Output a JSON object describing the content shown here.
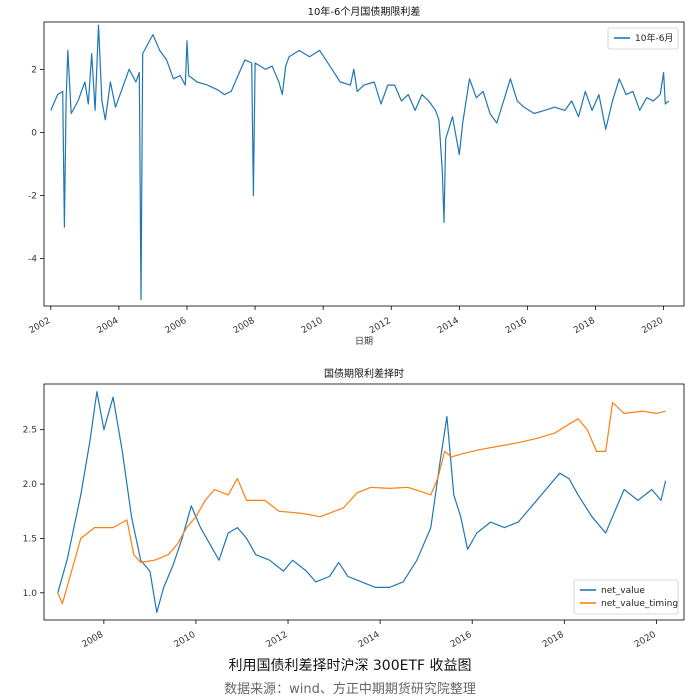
{
  "chart_data": [
    {
      "type": "line",
      "title": "10年-6个月国债期限利差",
      "xlabel": "日期",
      "ylabel": "",
      "xlim": [
        2001.8,
        2020.6
      ],
      "ylim": [
        -5.5,
        3.5
      ],
      "x_ticks": [
        2002,
        2004,
        2006,
        2008,
        2010,
        2012,
        2014,
        2016,
        2018,
        2020
      ],
      "x_tick_labels": [
        "2002",
        "2004",
        "2006",
        "2008",
        "2010",
        "2012",
        "2014",
        "2016",
        "2018",
        "2020"
      ],
      "y_ticks": [
        2,
        0,
        -2,
        -4
      ],
      "y_tick_labels": [
        "2",
        "0",
        "-2",
        "-4"
      ],
      "grid": false,
      "legend": "top-right",
      "series": [
        {
          "name": "10年-6月",
          "color": "#1f77b4",
          "points": [
            [
              2002.0,
              0.7
            ],
            [
              2002.2,
              1.2
            ],
            [
              2002.35,
              1.3
            ],
            [
              2002.4,
              -3.0
            ],
            [
              2002.45,
              1.0
            ],
            [
              2002.5,
              2.6
            ],
            [
              2002.6,
              0.6
            ],
            [
              2002.8,
              1.0
            ],
            [
              2003.0,
              1.6
            ],
            [
              2003.1,
              0.9
            ],
            [
              2003.2,
              2.5
            ],
            [
              2003.3,
              0.7
            ],
            [
              2003.4,
              3.4
            ],
            [
              2003.5,
              1.0
            ],
            [
              2003.6,
              0.4
            ],
            [
              2003.75,
              1.6
            ],
            [
              2003.9,
              0.8
            ],
            [
              2004.1,
              1.4
            ],
            [
              2004.3,
              2.0
            ],
            [
              2004.5,
              1.6
            ],
            [
              2004.6,
              1.9
            ],
            [
              2004.65,
              -5.3
            ],
            [
              2004.7,
              2.5
            ],
            [
              2004.9,
              2.9
            ],
            [
              2005.0,
              3.1
            ],
            [
              2005.2,
              2.6
            ],
            [
              2005.4,
              2.3
            ],
            [
              2005.6,
              1.7
            ],
            [
              2005.8,
              1.8
            ],
            [
              2005.95,
              1.5
            ],
            [
              2006.0,
              2.9
            ],
            [
              2006.05,
              1.8
            ],
            [
              2006.3,
              1.6
            ],
            [
              2006.6,
              1.5
            ],
            [
              2006.9,
              1.35
            ],
            [
              2007.1,
              1.2
            ],
            [
              2007.3,
              1.3
            ],
            [
              2007.5,
              1.8
            ],
            [
              2007.7,
              2.3
            ],
            [
              2007.9,
              2.2
            ],
            [
              2007.95,
              -2.0
            ],
            [
              2008.0,
              2.2
            ],
            [
              2008.3,
              2.0
            ],
            [
              2008.5,
              2.1
            ],
            [
              2008.7,
              1.6
            ],
            [
              2008.8,
              1.2
            ],
            [
              2008.9,
              2.1
            ],
            [
              2009.0,
              2.4
            ],
            [
              2009.3,
              2.6
            ],
            [
              2009.6,
              2.4
            ],
            [
              2009.9,
              2.6
            ],
            [
              2010.2,
              2.1
            ],
            [
              2010.5,
              1.6
            ],
            [
              2010.8,
              1.5
            ],
            [
              2010.9,
              2.0
            ],
            [
              2011.0,
              1.3
            ],
            [
              2011.2,
              1.5
            ],
            [
              2011.5,
              1.6
            ],
            [
              2011.7,
              0.9
            ],
            [
              2011.9,
              1.5
            ],
            [
              2012.1,
              1.5
            ],
            [
              2012.3,
              1.0
            ],
            [
              2012.5,
              1.2
            ],
            [
              2012.7,
              0.7
            ],
            [
              2012.9,
              1.2
            ],
            [
              2013.1,
              1.0
            ],
            [
              2013.3,
              0.7
            ],
            [
              2013.4,
              0.4
            ],
            [
              2013.5,
              -1.2
            ],
            [
              2013.55,
              -2.85
            ],
            [
              2013.6,
              -0.2
            ],
            [
              2013.8,
              0.5
            ],
            [
              2014.0,
              -0.7
            ],
            [
              2014.1,
              0.3
            ],
            [
              2014.3,
              1.7
            ],
            [
              2014.5,
              1.1
            ],
            [
              2014.7,
              1.3
            ],
            [
              2014.9,
              0.6
            ],
            [
              2015.1,
              0.3
            ],
            [
              2015.3,
              1.0
            ],
            [
              2015.5,
              1.7
            ],
            [
              2015.7,
              1.0
            ],
            [
              2015.9,
              0.8
            ],
            [
              2016.2,
              0.6
            ],
            [
              2016.5,
              0.7
            ],
            [
              2016.8,
              0.8
            ],
            [
              2017.1,
              0.7
            ],
            [
              2017.3,
              1.0
            ],
            [
              2017.5,
              0.5
            ],
            [
              2017.7,
              1.3
            ],
            [
              2017.9,
              0.7
            ],
            [
              2018.1,
              1.2
            ],
            [
              2018.3,
              0.1
            ],
            [
              2018.5,
              1.0
            ],
            [
              2018.7,
              1.7
            ],
            [
              2018.9,
              1.2
            ],
            [
              2019.1,
              1.3
            ],
            [
              2019.3,
              0.7
            ],
            [
              2019.5,
              1.1
            ],
            [
              2019.7,
              1.0
            ],
            [
              2019.9,
              1.2
            ],
            [
              2020.0,
              1.9
            ],
            [
              2020.05,
              0.9
            ],
            [
              2020.15,
              1.0
            ]
          ]
        }
      ]
    },
    {
      "type": "line",
      "title": "国债期限利差择时",
      "xlabel": "",
      "ylabel": "",
      "xlim": [
        2006.7,
        2020.6
      ],
      "ylim": [
        0.75,
        2.92
      ],
      "x_ticks": [
        2008,
        2010,
        2012,
        2014,
        2016,
        2018,
        2020
      ],
      "x_tick_labels": [
        "2008",
        "2010",
        "2012",
        "2014",
        "2016",
        "2018",
        "2020"
      ],
      "y_ticks": [
        2.5,
        2.0,
        1.5,
        1.0
      ],
      "y_tick_labels": [
        "2.5",
        "2.0",
        "1.5",
        "1.0"
      ],
      "grid": false,
      "legend": "bottom-right",
      "series": [
        {
          "name": "net_value",
          "color": "#1f77b4",
          "points": [
            [
              2007.0,
              1.0
            ],
            [
              2007.2,
              1.3
            ],
            [
              2007.5,
              1.9
            ],
            [
              2007.7,
              2.4
            ],
            [
              2007.85,
              2.85
            ],
            [
              2008.0,
              2.5
            ],
            [
              2008.2,
              2.8
            ],
            [
              2008.4,
              2.3
            ],
            [
              2008.6,
              1.7
            ],
            [
              2008.8,
              1.3
            ],
            [
              2009.0,
              1.2
            ],
            [
              2009.15,
              0.82
            ],
            [
              2009.3,
              1.05
            ],
            [
              2009.5,
              1.25
            ],
            [
              2009.7,
              1.5
            ],
            [
              2009.9,
              1.8
            ],
            [
              2010.1,
              1.6
            ],
            [
              2010.3,
              1.45
            ],
            [
              2010.5,
              1.3
            ],
            [
              2010.7,
              1.55
            ],
            [
              2010.9,
              1.6
            ],
            [
              2011.1,
              1.5
            ],
            [
              2011.3,
              1.35
            ],
            [
              2011.6,
              1.3
            ],
            [
              2011.9,
              1.2
            ],
            [
              2012.1,
              1.3
            ],
            [
              2012.4,
              1.2
            ],
            [
              2012.6,
              1.1
            ],
            [
              2012.9,
              1.15
            ],
            [
              2013.1,
              1.28
            ],
            [
              2013.3,
              1.15
            ],
            [
              2013.6,
              1.1
            ],
            [
              2013.9,
              1.05
            ],
            [
              2014.2,
              1.05
            ],
            [
              2014.5,
              1.1
            ],
            [
              2014.8,
              1.3
            ],
            [
              2015.1,
              1.6
            ],
            [
              2015.3,
              2.2
            ],
            [
              2015.45,
              2.62
            ],
            [
              2015.6,
              1.9
            ],
            [
              2015.75,
              1.7
            ],
            [
              2015.9,
              1.4
            ],
            [
              2016.1,
              1.55
            ],
            [
              2016.4,
              1.65
            ],
            [
              2016.7,
              1.6
            ],
            [
              2017.0,
              1.65
            ],
            [
              2017.3,
              1.8
            ],
            [
              2017.6,
              1.95
            ],
            [
              2017.9,
              2.1
            ],
            [
              2018.1,
              2.05
            ],
            [
              2018.3,
              1.9
            ],
            [
              2018.6,
              1.7
            ],
            [
              2018.9,
              1.55
            ],
            [
              2019.1,
              1.75
            ],
            [
              2019.3,
              1.95
            ],
            [
              2019.6,
              1.85
            ],
            [
              2019.9,
              1.95
            ],
            [
              2020.1,
              1.85
            ],
            [
              2020.2,
              2.03
            ]
          ]
        },
        {
          "name": "net_value_timing",
          "color": "#ff7f0e",
          "points": [
            [
              2007.0,
              1.0
            ],
            [
              2007.1,
              0.9
            ],
            [
              2007.3,
              1.2
            ],
            [
              2007.5,
              1.5
            ],
            [
              2007.8,
              1.6
            ],
            [
              2008.2,
              1.6
            ],
            [
              2008.5,
              1.67
            ],
            [
              2008.65,
              1.35
            ],
            [
              2008.8,
              1.28
            ],
            [
              2009.1,
              1.3
            ],
            [
              2009.4,
              1.35
            ],
            [
              2009.6,
              1.45
            ],
            [
              2009.8,
              1.6
            ],
            [
              2010.0,
              1.7
            ],
            [
              2010.2,
              1.85
            ],
            [
              2010.4,
              1.95
            ],
            [
              2010.7,
              1.9
            ],
            [
              2010.9,
              2.05
            ],
            [
              2011.1,
              1.85
            ],
            [
              2011.5,
              1.85
            ],
            [
              2011.8,
              1.75
            ],
            [
              2012.3,
              1.73
            ],
            [
              2012.7,
              1.7
            ],
            [
              2013.2,
              1.78
            ],
            [
              2013.5,
              1.92
            ],
            [
              2013.8,
              1.97
            ],
            [
              2014.2,
              1.96
            ],
            [
              2014.6,
              1.97
            ],
            [
              2014.9,
              1.93
            ],
            [
              2015.1,
              1.9
            ],
            [
              2015.25,
              2.05
            ],
            [
              2015.4,
              2.3
            ],
            [
              2015.55,
              2.25
            ],
            [
              2015.8,
              2.28
            ],
            [
              2016.2,
              2.32
            ],
            [
              2016.6,
              2.35
            ],
            [
              2017.0,
              2.38
            ],
            [
              2017.4,
              2.42
            ],
            [
              2017.8,
              2.47
            ],
            [
              2018.1,
              2.55
            ],
            [
              2018.3,
              2.6
            ],
            [
              2018.5,
              2.5
            ],
            [
              2018.7,
              2.3
            ],
            [
              2018.9,
              2.3
            ],
            [
              2019.05,
              2.75
            ],
            [
              2019.3,
              2.65
            ],
            [
              2019.7,
              2.67
            ],
            [
              2020.0,
              2.65
            ],
            [
              2020.2,
              2.67
            ]
          ]
        }
      ]
    }
  ],
  "captions": {
    "main": "利用国债利差择时沪深 300ETF 收益图",
    "source": "数据来源：wind、方正中期期货研究院整理"
  }
}
